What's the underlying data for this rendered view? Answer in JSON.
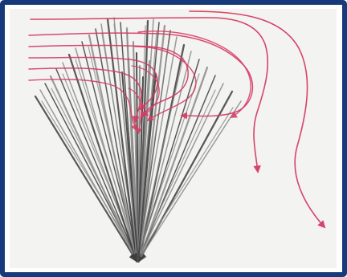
{
  "figure": {
    "border_color": "#173a7a",
    "background_color": "#f3f3f1",
    "gray_arrow_color": "#3f3f3f",
    "gray_arrow_light_color": "#8b8b8b",
    "red_arrow_color": "#d63a63"
  }
}
